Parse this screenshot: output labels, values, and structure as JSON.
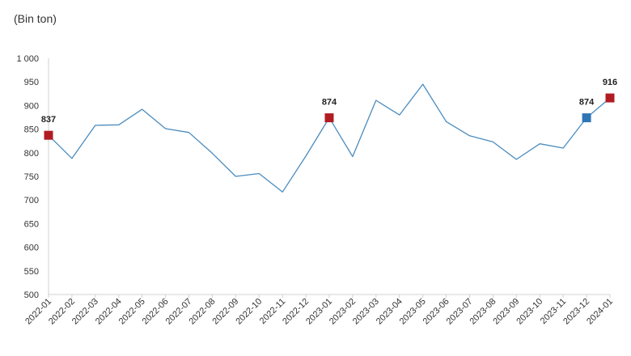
{
  "chart_data": {
    "type": "line",
    "unit_label": "(Bin ton)",
    "title": "",
    "xlabel": "",
    "ylabel": "",
    "categories": [
      "2022-01",
      "2022-02",
      "2022-03",
      "2022-04",
      "2022-05",
      "2022-06",
      "2022-07",
      "2022-08",
      "2022-09",
      "2022-10",
      "2022-11",
      "2022-12",
      "2023-01",
      "2023-02",
      "2023-03",
      "2023-04",
      "2023-05",
      "2023-06",
      "2023-07",
      "2023-08",
      "2023-09",
      "2023-10",
      "2023-11",
      "2023-12",
      "2024-01"
    ],
    "values": [
      837,
      788,
      858,
      859,
      892,
      851,
      843,
      799,
      750,
      756,
      717,
      793,
      874,
      792,
      911,
      880,
      945,
      866,
      836,
      823,
      786,
      819,
      810,
      874,
      916
    ],
    "ylim": [
      500,
      1000
    ],
    "yticks": [
      500,
      550,
      600,
      650,
      700,
      750,
      800,
      850,
      900,
      950,
      1000
    ],
    "ytick_labels": [
      "500",
      "550",
      "600",
      "650",
      "700",
      "750",
      "800",
      "850",
      "900",
      "950",
      "1 000"
    ],
    "grid": false,
    "line_color": "#4a8cbf",
    "highlights": [
      {
        "index": 0,
        "label": "837",
        "color": "#b01c22"
      },
      {
        "index": 12,
        "label": "874",
        "color": "#b01c22"
      },
      {
        "index": 23,
        "label": "874",
        "color": "#2e75b6"
      },
      {
        "index": 24,
        "label": "916",
        "color": "#b01c22"
      }
    ]
  }
}
